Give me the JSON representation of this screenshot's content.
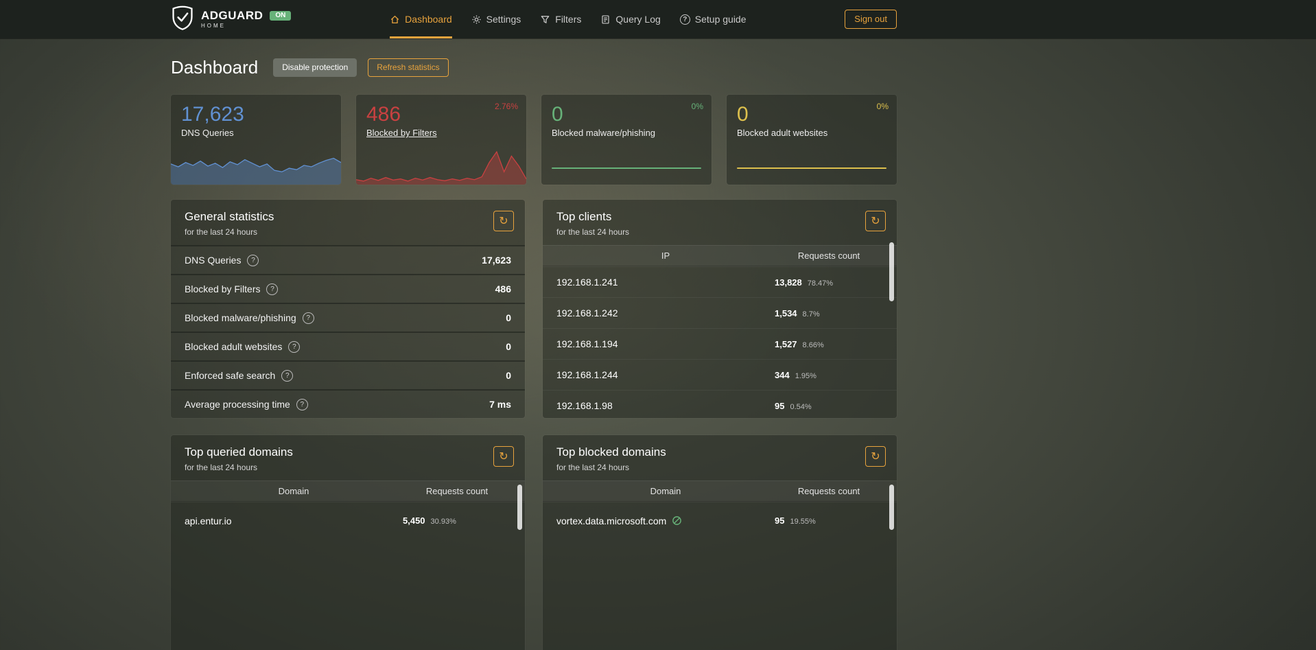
{
  "colors": {
    "orange_accent": "#e8a33d",
    "blue": "#6191d2",
    "red": "#c94141",
    "green": "#67b279",
    "yellow": "#ddc04d",
    "bar_track": "#f2f2f2"
  },
  "icons": {
    "refresh": "↻",
    "question": "?"
  },
  "header": {
    "brand_name": "ADGUARD",
    "brand_sub": "HOME",
    "status_badge": "ON",
    "nav": [
      {
        "label": "Dashboard"
      },
      {
        "label": "Settings"
      },
      {
        "label": "Filters"
      },
      {
        "label": "Query Log"
      },
      {
        "label": "Setup guide"
      }
    ],
    "sign_out_label": "Sign out"
  },
  "page": {
    "title": "Dashboard",
    "disable_protection_label": "Disable protection",
    "refresh_statistics_label": "Refresh statistics"
  },
  "stat_cards": [
    {
      "value": "17,623",
      "label": "DNS Queries",
      "delta": "",
      "color": "#6191d2",
      "points": [
        58,
        50,
        62,
        54,
        66,
        52,
        60,
        48,
        64,
        56,
        70,
        60,
        50,
        58,
        40,
        36,
        46,
        42,
        54,
        50,
        60,
        68,
        74,
        62
      ]
    },
    {
      "value": "486",
      "label": "Blocked by Filters",
      "delta": "2.76%",
      "color": "#c94141",
      "points": [
        14,
        10,
        18,
        12,
        20,
        13,
        16,
        10,
        18,
        13,
        20,
        14,
        11,
        16,
        12,
        18,
        14,
        22,
        62,
        92,
        36,
        80,
        52,
        16
      ]
    },
    {
      "value": "0",
      "label": "Blocked malware/phishing",
      "delta": "0%",
      "color": "#67b279"
    },
    {
      "value": "0",
      "label": "Blocked adult websites",
      "delta": "0%",
      "color": "#ddc04d"
    }
  ],
  "general_statistics": {
    "title": "General statistics",
    "subtitle": "for the last 24 hours",
    "rows": [
      {
        "label": "DNS Queries",
        "value": "17,623"
      },
      {
        "label": "Blocked by Filters",
        "value": "486"
      },
      {
        "label": "Blocked malware/phishing",
        "value": "0"
      },
      {
        "label": "Blocked adult websites",
        "value": "0"
      },
      {
        "label": "Enforced safe search",
        "value": "0"
      },
      {
        "label": "Average processing time",
        "value": "7 ms"
      }
    ]
  },
  "top_clients": {
    "title": "Top clients",
    "subtitle": "for the last 24 hours",
    "col_ip": "IP",
    "col_count": "Requests count",
    "rows": [
      {
        "ip": "192.168.1.241",
        "count": "13,828",
        "pct_label": "78.47%",
        "pct": 78.47,
        "color": "#67b279"
      },
      {
        "ip": "192.168.1.242",
        "count": "1,534",
        "pct_label": "8.7%",
        "pct": 8.7,
        "color": "#c94141"
      },
      {
        "ip": "192.168.1.194",
        "count": "1,527",
        "pct_label": "8.66%",
        "pct": 8.66,
        "color": "#c94141"
      },
      {
        "ip": "192.168.1.244",
        "count": "344",
        "pct_label": "1.95%",
        "pct": 1.95,
        "color": "#c94141"
      },
      {
        "ip": "192.168.1.98",
        "count": "95",
        "pct_label": "0.54%",
        "pct": 0.54,
        "color": "#c94141"
      }
    ]
  },
  "top_queried": {
    "title": "Top queried domains",
    "subtitle": "for the last 24 hours",
    "col_domain": "Domain",
    "col_count": "Requests count",
    "rows": [
      {
        "domain": "api.entur.io",
        "count": "5,450",
        "pct_label": "30.93%",
        "pct": 30.93,
        "color": "#c94141"
      }
    ]
  },
  "top_blocked": {
    "title": "Top blocked domains",
    "subtitle": "for the last 24 hours",
    "col_domain": "Domain",
    "col_count": "Requests count",
    "rows": [
      {
        "domain": "vortex.data.microsoft.com",
        "count": "95",
        "pct_label": "19.55%",
        "pct": 19.55,
        "color": "#c94141"
      }
    ]
  }
}
